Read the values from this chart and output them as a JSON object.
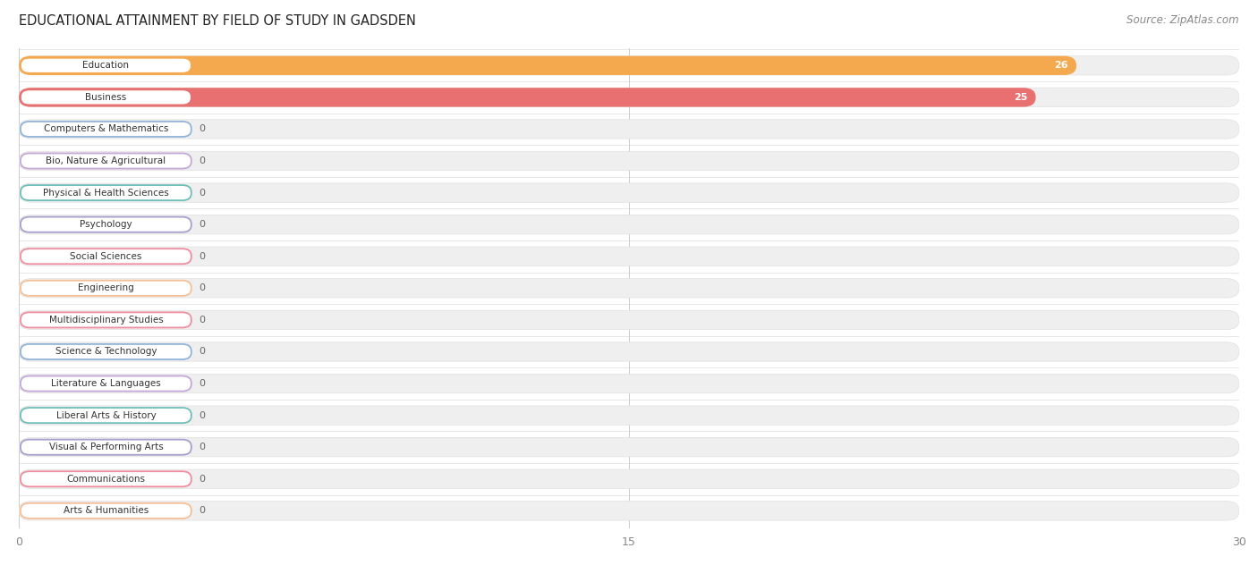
{
  "title": "EDUCATIONAL ATTAINMENT BY FIELD OF STUDY IN GADSDEN",
  "source": "Source: ZipAtlas.com",
  "categories": [
    "Education",
    "Business",
    "Computers & Mathematics",
    "Bio, Nature & Agricultural",
    "Physical & Health Sciences",
    "Psychology",
    "Social Sciences",
    "Engineering",
    "Multidisciplinary Studies",
    "Science & Technology",
    "Literature & Languages",
    "Liberal Arts & History",
    "Visual & Performing Arts",
    "Communications",
    "Arts & Humanities"
  ],
  "values": [
    26,
    25,
    0,
    0,
    0,
    0,
    0,
    0,
    0,
    0,
    0,
    0,
    0,
    0,
    0
  ],
  "bar_colors": [
    "#F5A94E",
    "#E87070",
    "#92B4DA",
    "#C4A8D8",
    "#6DBFB8",
    "#A99FCC",
    "#F08EA0",
    "#F5C097",
    "#F08EA0",
    "#92B4DA",
    "#C4A8D8",
    "#6DBFB8",
    "#A99FCC",
    "#F08EA0",
    "#F5C097"
  ],
  "xlim": [
    0,
    30
  ],
  "xticks": [
    0,
    15,
    30
  ],
  "fig_bg": "#ffffff",
  "plot_bg": "#ffffff",
  "bar_bg_color": "#efefef",
  "bar_bg_edge": "#e0e0e0",
  "title_fontsize": 10.5,
  "source_fontsize": 8.5,
  "label_fontsize": 7.5,
  "value_fontsize": 8.0
}
